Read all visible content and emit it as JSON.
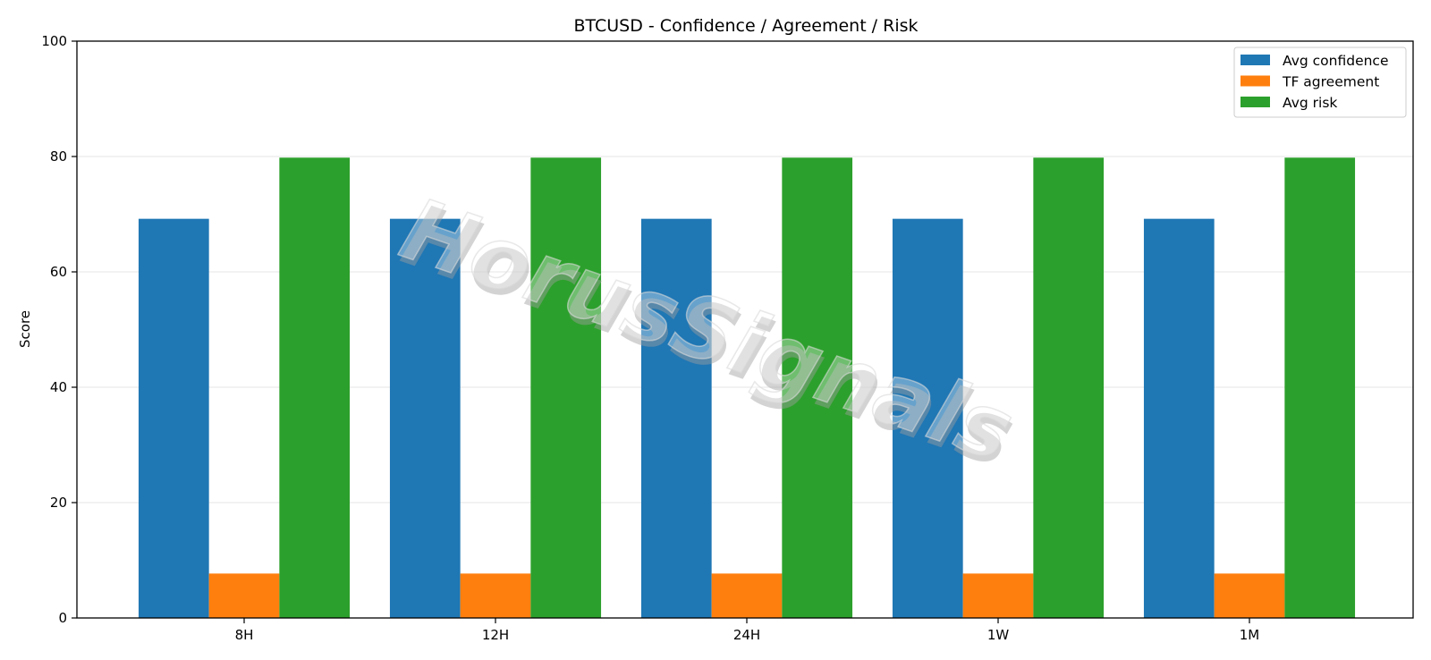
{
  "chart_data": {
    "type": "bar",
    "title": "BTCUSD - Confidence / Agreement / Risk",
    "xlabel": "",
    "ylabel": "Score",
    "ylim": [
      0,
      100
    ],
    "yticks": [
      0,
      20,
      40,
      60,
      80,
      100
    ],
    "grid": "horizontal",
    "legend_position": "top-right",
    "categories": [
      "8H",
      "12H",
      "24H",
      "1W",
      "1M"
    ],
    "series": [
      {
        "name": "Avg confidence",
        "color": "#1f77b4",
        "values": [
          69.2,
          69.2,
          69.2,
          69.2,
          69.2
        ]
      },
      {
        "name": "TF agreement",
        "color": "#ff7f0e",
        "values": [
          7.7,
          7.7,
          7.7,
          7.7,
          7.7
        ]
      },
      {
        "name": "Avg risk",
        "color": "#2ca02c",
        "values": [
          79.8,
          79.8,
          79.8,
          79.8,
          79.8
        ]
      }
    ],
    "watermark": "HorusSignals"
  }
}
